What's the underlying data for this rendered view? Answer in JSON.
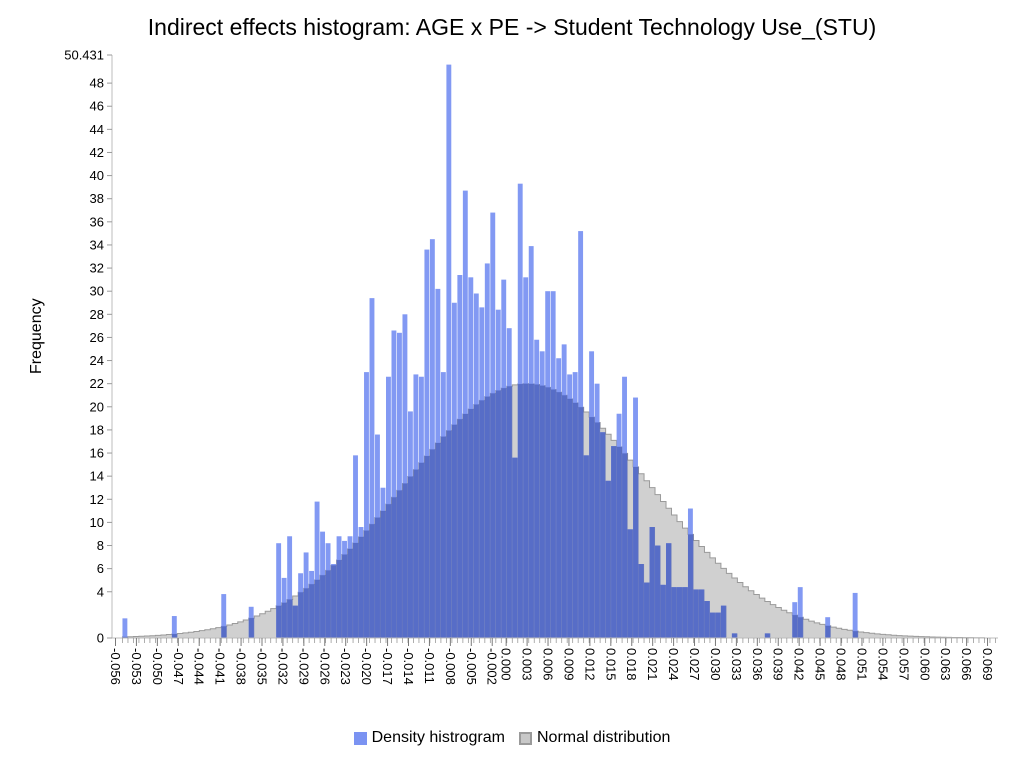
{
  "title": "Indirect effects histogram: AGE x PE -> Student Technology Use_(STU)",
  "chart_data": {
    "type": "bar",
    "ylabel": "Frequency",
    "xlabel": "",
    "ylim": [
      0,
      50.431
    ],
    "xlim": [
      -0.0565,
      0.0705
    ],
    "y_ticks": [
      "0",
      "4",
      "6",
      "8",
      "10",
      "12",
      "14",
      "16",
      "18",
      "20",
      "22",
      "24",
      "26",
      "28",
      "30",
      "32",
      "34",
      "36",
      "38",
      "40",
      "42",
      "44",
      "46",
      "48",
      "50.431"
    ],
    "x_ticks": [
      "-0.056",
      "-0.053",
      "-0.050",
      "-0.047",
      "-0.044",
      "-0.041",
      "-0.038",
      "-0.035",
      "-0.032",
      "-0.029",
      "-0.026",
      "-0.023",
      "-0.020",
      "-0.017",
      "-0.014",
      "-0.011",
      "-0.008",
      "-0.005",
      "-0.002",
      "0.000",
      "0.003",
      "0.006",
      "0.009",
      "0.012",
      "0.015",
      "0.018",
      "0.021",
      "0.024",
      "0.027",
      "0.030",
      "0.033",
      "0.036",
      "0.039",
      "0.042",
      "0.045",
      "0.048",
      "0.051",
      "0.054",
      "0.057",
      "0.060",
      "0.063",
      "0.066",
      "0.069"
    ],
    "bin_start": -0.055,
    "bin_width": 0.000787,
    "series": [
      {
        "name": "Density histrogram",
        "color": "#7b93f2",
        "values": [
          1.7,
          0,
          0,
          0,
          0,
          0,
          0,
          0,
          0,
          1.9,
          0,
          0,
          0,
          0,
          0,
          0,
          0,
          0,
          3.8,
          0,
          0,
          0,
          0,
          2.7,
          0,
          0,
          0,
          0,
          8.2,
          5.2,
          8.8,
          2.8,
          5.6,
          7.4,
          5.8,
          11.8,
          9.2,
          8.2,
          6.4,
          8.8,
          8.4,
          8.8,
          15.8,
          9.6,
          23,
          29.4,
          17.6,
          13,
          22.6,
          26.6,
          26.4,
          28,
          19.6,
          22.8,
          22.6,
          33.6,
          34.5,
          30.2,
          23,
          49.6,
          29,
          31.4,
          38.7,
          31.2,
          29.8,
          28.6,
          32.4,
          36.8,
          28.4,
          31,
          26.8,
          15.6,
          39.3,
          31.2,
          33.9,
          25.8,
          24.8,
          30,
          30,
          24.2,
          25.4,
          22.8,
          23,
          35.2,
          15.8,
          24.8,
          22,
          17.8,
          13.6,
          16.6,
          19.4,
          22.6,
          9.4,
          20.8,
          6.4,
          4.8,
          9.6,
          8,
          4.6,
          8.2,
          4.4,
          4.4,
          4.4,
          11.2,
          4.2,
          4.2,
          3.2,
          2.2,
          2.2,
          2.8,
          0,
          0.4,
          0,
          0,
          0,
          0,
          0,
          0.4,
          0,
          0,
          0,
          0,
          3.1,
          4.4,
          0,
          0,
          0,
          0,
          1.8,
          0,
          0,
          0,
          0,
          3.9
        ]
      },
      {
        "name": "Normal distribution",
        "color": "#c8c8c8",
        "mean": 0.003,
        "sd": 0.0175,
        "peak": 22.0
      }
    ]
  },
  "legend": {
    "density_label": "Density histrogram",
    "normal_label": "Normal distribution"
  }
}
